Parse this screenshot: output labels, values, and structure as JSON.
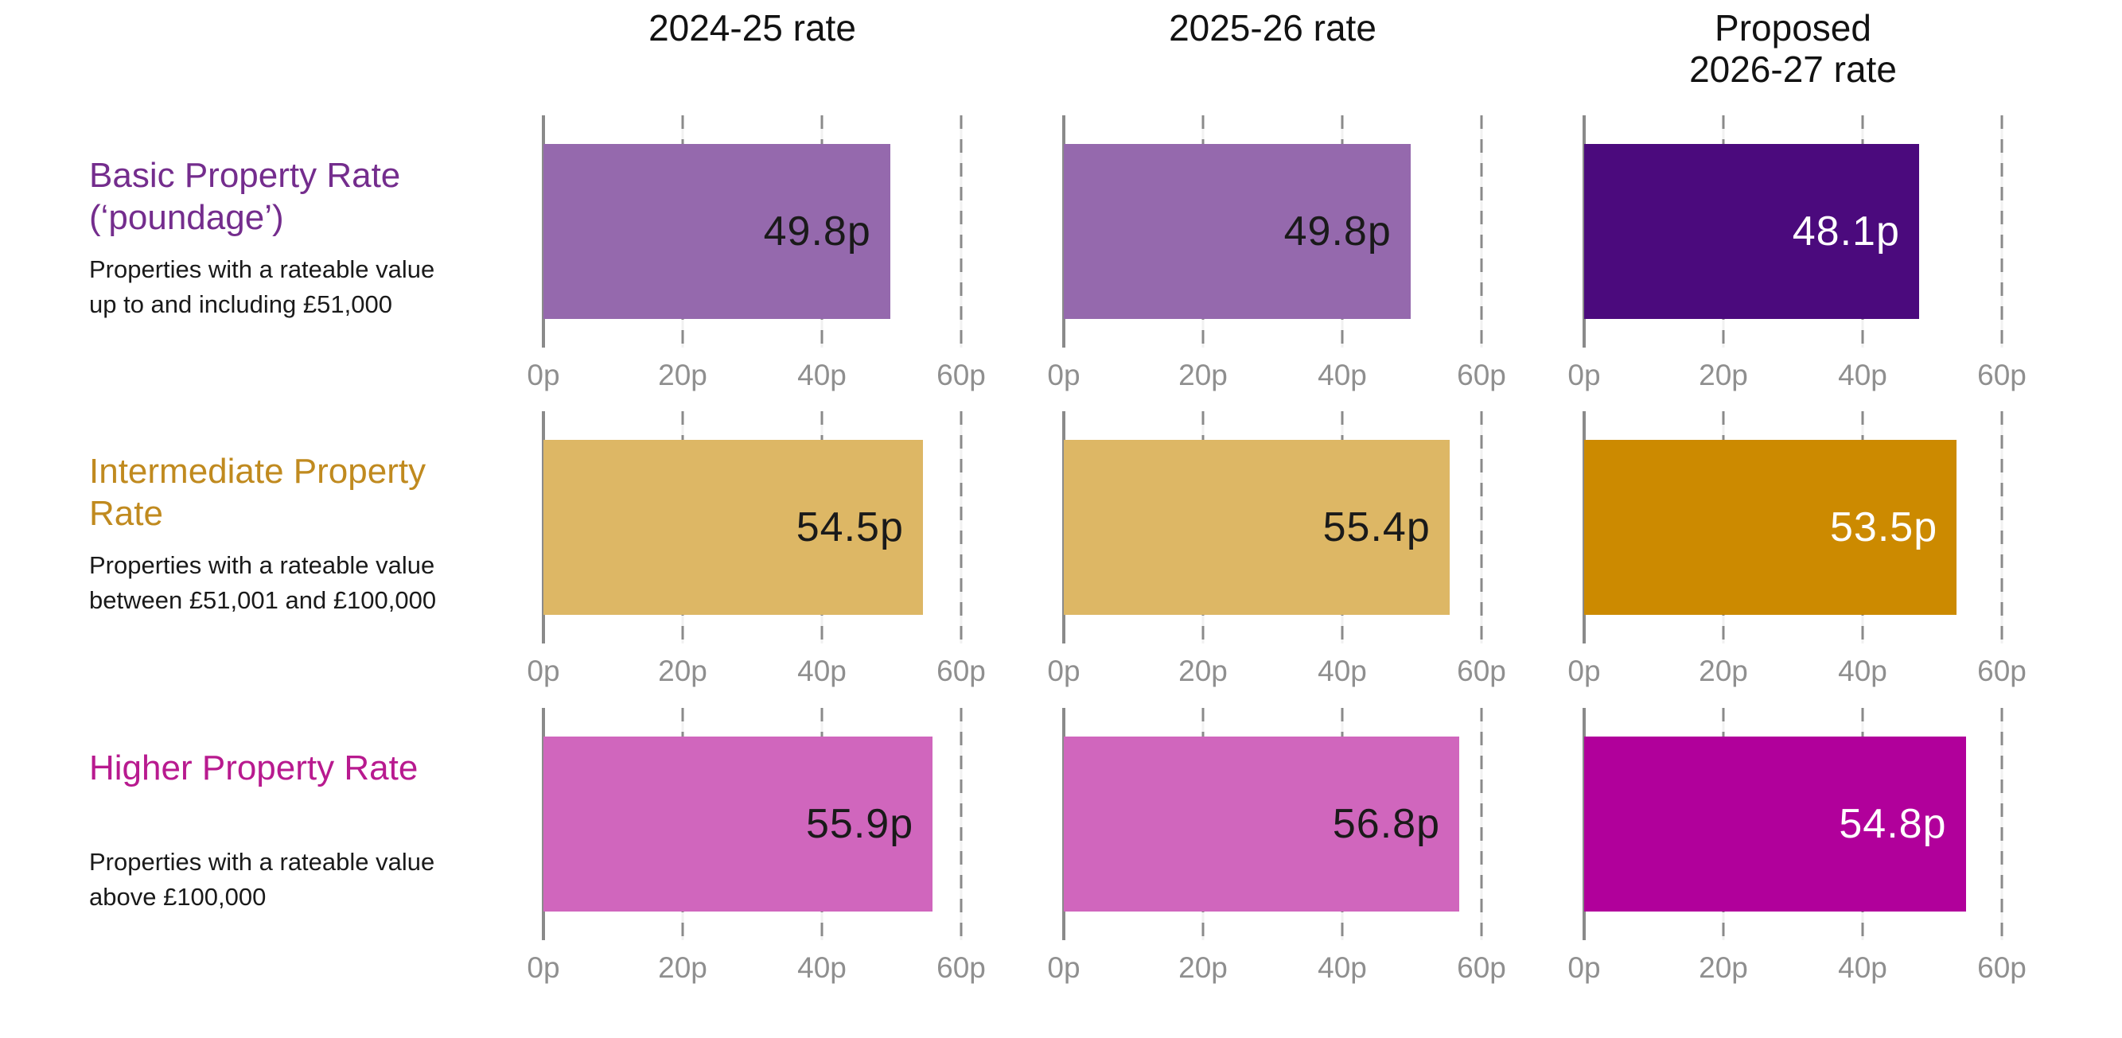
{
  "chart_data": {
    "type": "bar",
    "orientation": "horizontal",
    "unit": "pence per pound of rateable value",
    "xmax": 60,
    "tick_values": [
      0,
      20,
      40,
      60
    ],
    "ticks": [
      "0p",
      "20p",
      "40p",
      "60p"
    ],
    "grid": "dashed-vertical",
    "columns": [
      "2024-25 rate",
      "2025-26 rate",
      "Proposed\n2026-27 rate"
    ],
    "rows": [
      {
        "title": "Basic Property Rate\n(‘poundage’)",
        "subtitle": "Properties with a rateable value\nup to and including £51,000",
        "title_color": "#742d8d",
        "regular_color": "#9569ad",
        "proposed_color": "#4b0a7d",
        "values": [
          49.8,
          49.8,
          48.1
        ],
        "labels": [
          "49.8p",
          "49.8p",
          "48.1p"
        ],
        "value_text_colors": [
          "#1a1a1a",
          "#1a1a1a",
          "#ffffff"
        ]
      },
      {
        "title": "Intermediate Property\nRate",
        "subtitle": "Properties with a rateable value\nbetween £51,001 and £100,000",
        "title_color": "#c08a1f",
        "regular_color": "#ddb765",
        "proposed_color": "#cc8a00",
        "values": [
          54.5,
          55.4,
          53.5
        ],
        "labels": [
          "54.5p",
          "55.4p",
          "53.5p"
        ],
        "value_text_colors": [
          "#1a1a1a",
          "#1a1a1a",
          "#ffffff"
        ]
      },
      {
        "title": "Higher Property Rate",
        "subtitle": "Properties with a rateable value\nabove £100,000",
        "title_color": "#b81a8f",
        "regular_color": "#d066bd",
        "proposed_color": "#b1009b",
        "values": [
          55.9,
          56.8,
          54.8
        ],
        "labels": [
          "55.9p",
          "56.8p",
          "54.8p"
        ],
        "value_text_colors": [
          "#1a1a1a",
          "#1a1a1a",
          "#ffffff"
        ]
      }
    ]
  }
}
